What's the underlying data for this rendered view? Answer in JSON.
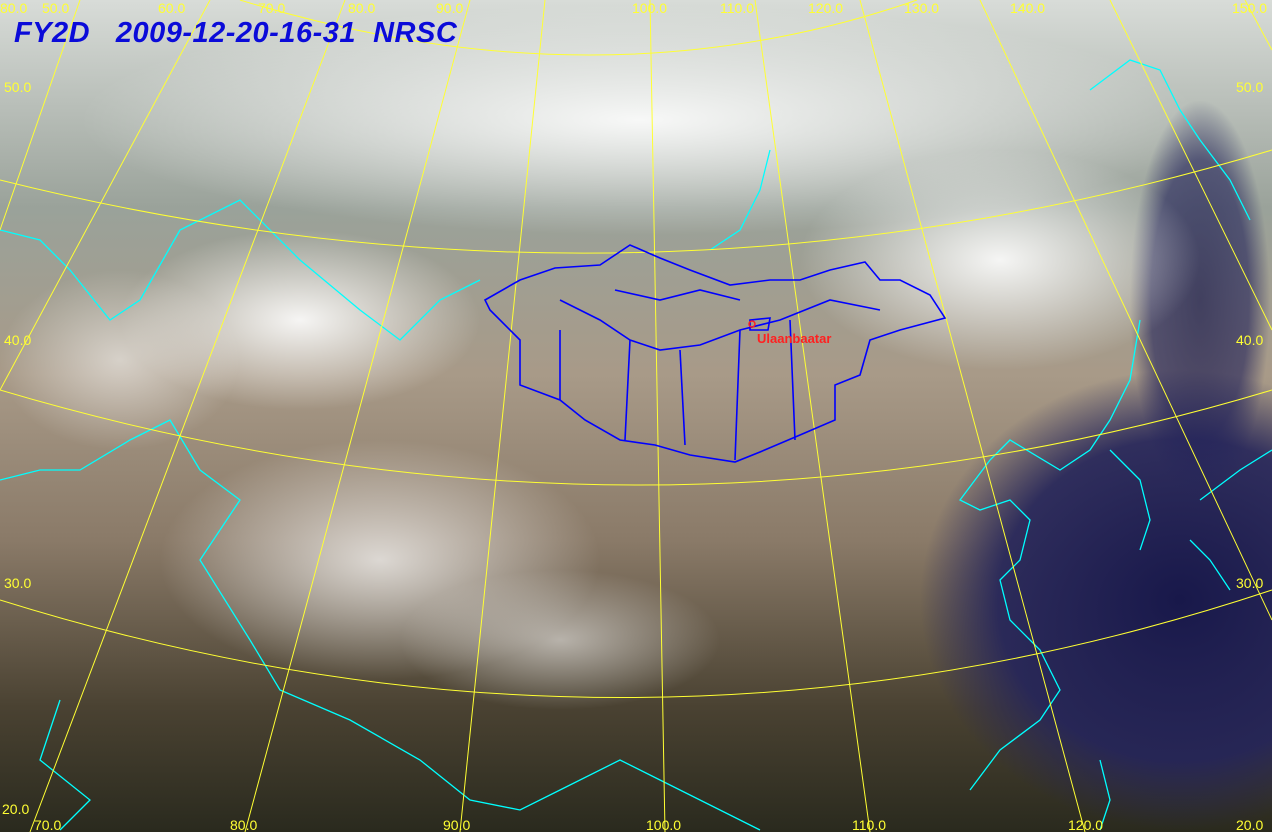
{
  "title": {
    "satellite": "FY2D",
    "datetime": "2009-12-20-16-31",
    "agency": "NRSC"
  },
  "longitude_labels_top": [
    "50.0",
    "60.0",
    "70.0",
    "80.0",
    "90.0",
    "100.0",
    "110.0",
    "120.0",
    "130.0",
    "140.0",
    "150.0"
  ],
  "longitude_labels_bottom": [
    "70.0",
    "80.0",
    "90.0",
    "100.0",
    "110.0",
    "120.0"
  ],
  "latitude_labels_left": [
    "80.0",
    "50.0",
    "40.0",
    "30.0",
    "20.0"
  ],
  "latitude_labels_right": [
    "50.0",
    "40.0",
    "30.0",
    "20.0"
  ],
  "city": {
    "name": "Ulaanbaatar"
  },
  "colors": {
    "title": "#0b0bd9",
    "grid": "#ffff33",
    "coastline": "#00ffff",
    "mongolia_border": "#0000ff",
    "city_label": "#ff2020",
    "ocean": "#1c1c50"
  }
}
